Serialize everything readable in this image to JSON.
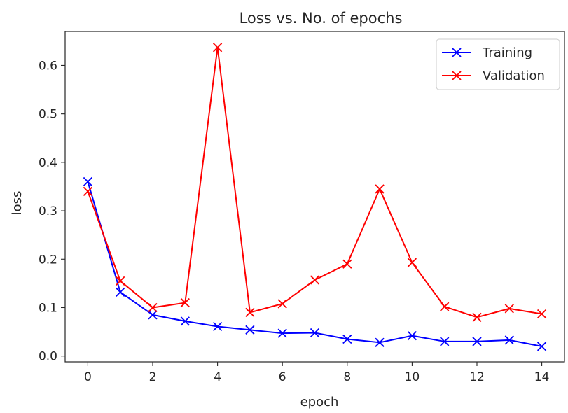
{
  "chart_data": {
    "type": "line",
    "title": "Loss vs. No. of epochs",
    "xlabel": "epoch",
    "ylabel": "loss",
    "xlim": [
      -0.7,
      14.7
    ],
    "ylim": [
      -0.012,
      0.67
    ],
    "xticks": [
      0,
      2,
      4,
      6,
      8,
      10,
      12,
      14
    ],
    "yticks": [
      0.0,
      0.1,
      0.2,
      0.3,
      0.4,
      0.5,
      0.6
    ],
    "grid": false,
    "legend_position": "top-right",
    "x": [
      0,
      1,
      2,
      3,
      4,
      5,
      6,
      7,
      8,
      9,
      10,
      11,
      12,
      13,
      14
    ],
    "series": [
      {
        "name": "Training",
        "color": "#0000ff",
        "marker": "x",
        "values": [
          0.36,
          0.132,
          0.085,
          0.072,
          0.061,
          0.054,
          0.047,
          0.048,
          0.035,
          0.028,
          0.042,
          0.03,
          0.03,
          0.033,
          0.02
        ]
      },
      {
        "name": "Validation",
        "color": "#ff0000",
        "marker": "x",
        "values": [
          0.34,
          0.155,
          0.1,
          0.11,
          0.637,
          0.09,
          0.108,
          0.157,
          0.19,
          0.345,
          0.193,
          0.102,
          0.08,
          0.098,
          0.087
        ]
      }
    ]
  }
}
